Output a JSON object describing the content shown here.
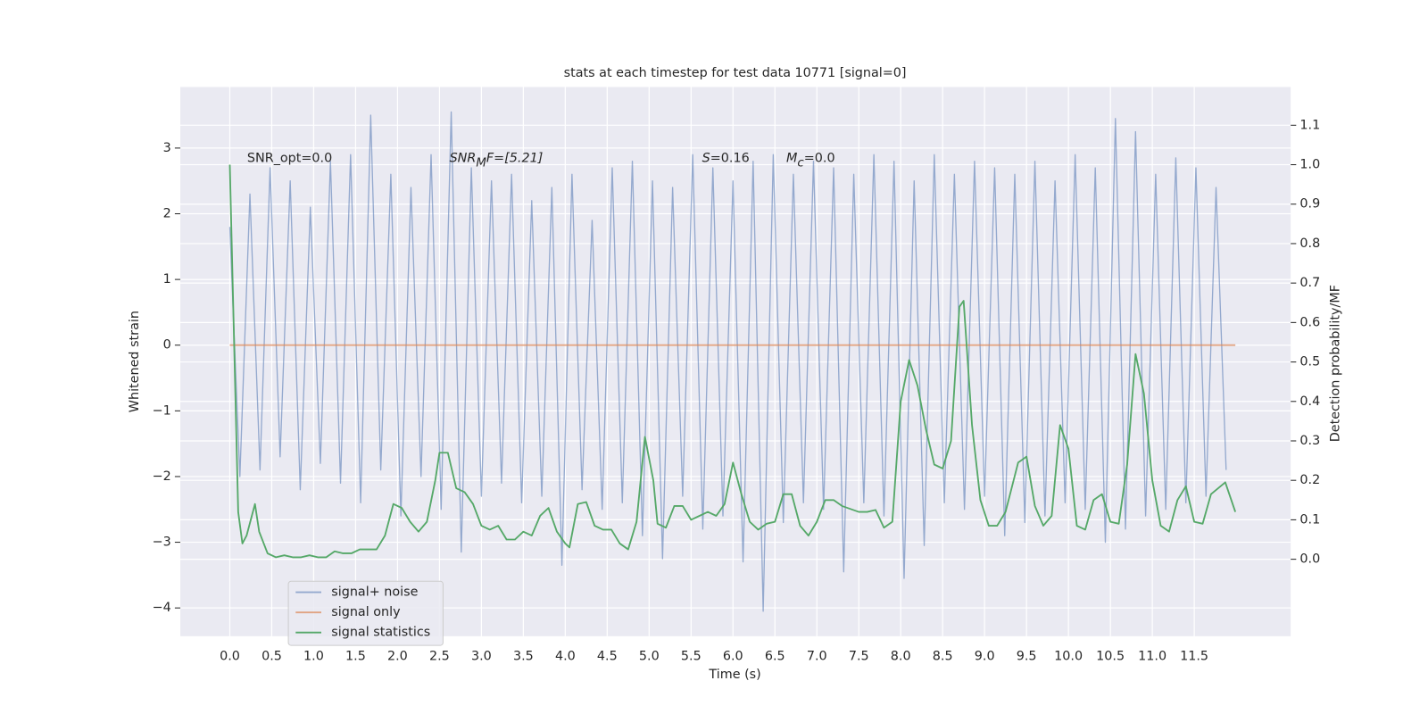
{
  "chart_data": {
    "type": "line",
    "title": "stats at each timestep for test data 10771 [signal=0]",
    "xlabel": "Time (s)",
    "ylabel": "Whitened strain",
    "y2label": "Detection probability/MF",
    "annotations": [
      [
        "SNR_opt=0.0"
      ],
      [
        "SNR",
        "M",
        "F=[5.21]"
      ],
      [
        "S",
        "",
        "=0.16"
      ],
      [
        "M",
        "c",
        "=0.0"
      ]
    ],
    "xlim": [
      -0.59,
      12.65
    ],
    "ylim": [
      -4.43,
      3.93
    ],
    "y2lim": [
      -0.195,
      1.197
    ],
    "xticks": [
      {
        "value": 0,
        "label": "0.0"
      },
      0.5,
      {
        "value": 1,
        "label": "1.0"
      },
      1.5,
      {
        "value": 2,
        "label": "2.0"
      },
      2.5,
      {
        "value": 3,
        "label": "3.0"
      },
      3.5,
      {
        "value": 4,
        "label": "4.0"
      },
      4.5,
      {
        "value": 5,
        "label": "5.0"
      },
      5.5,
      {
        "value": 6,
        "label": "6.0"
      },
      6.5,
      {
        "value": 7,
        "label": "7.0"
      },
      7.5,
      {
        "value": 8,
        "label": "8.0"
      },
      8.5,
      {
        "value": 9,
        "label": "9.0"
      },
      9.5,
      {
        "value": 10,
        "label": "10.0"
      },
      10.5,
      {
        "value": 11,
        "label": "11.0"
      },
      11.5
    ],
    "yticks": [
      {
        "value": -4,
        "label": "−4"
      },
      {
        "value": -3,
        "label": "−3"
      },
      {
        "value": -2,
        "label": "−2"
      },
      {
        "value": -1,
        "label": "−1"
      },
      0,
      1,
      2,
      3
    ],
    "y2ticks": [
      {
        "value": 0,
        "label": "0.0"
      },
      0.1,
      0.2,
      0.3,
      0.4,
      0.5,
      0.6,
      0.7,
      0.8,
      0.9,
      {
        "value": 1,
        "label": "1.0"
      },
      1.1
    ],
    "grid": true,
    "legend": "lower left",
    "series": [
      {
        "name": "signal+ noise",
        "color": "#4c72b0",
        "x": [
          0,
          0.12,
          0.24,
          0.36,
          0.48,
          0.6,
          0.72,
          0.84,
          0.96,
          1.08,
          1.2,
          1.32,
          1.44,
          1.56,
          1.68,
          1.8,
          1.92,
          2.04,
          2.16,
          2.28,
          2.4,
          2.52,
          2.64,
          2.76,
          2.88,
          3.0,
          3.12,
          3.24,
          3.36,
          3.48,
          3.6,
          3.72,
          3.84,
          3.96,
          4.08,
          4.2,
          4.32,
          4.44,
          4.56,
          4.68,
          4.8,
          4.92,
          5.04,
          5.16,
          5.28,
          5.4,
          5.52,
          5.64,
          5.76,
          5.88,
          6.0,
          6.12,
          6.24,
          6.36,
          6.48,
          6.6,
          6.72,
          6.84,
          6.96,
          7.08,
          7.2,
          7.32,
          7.44,
          7.56,
          7.68,
          7.8,
          7.92,
          8.04,
          8.16,
          8.28,
          8.4,
          8.52,
          8.64,
          8.76,
          8.88,
          9.0,
          9.12,
          9.24,
          9.36,
          9.48,
          9.6,
          9.72,
          9.84,
          9.96,
          10.08,
          10.2,
          10.32,
          10.44,
          10.56,
          10.68,
          10.8,
          10.92,
          11.04,
          11.16,
          11.28,
          11.4,
          11.52,
          11.64,
          11.76,
          11.88
        ],
        "values": [
          1.8,
          -2.0,
          2.3,
          -1.9,
          2.7,
          -1.7,
          2.5,
          -2.2,
          2.1,
          -1.8,
          2.8,
          -2.1,
          2.9,
          -2.4,
          3.5,
          -1.9,
          2.6,
          -2.6,
          2.4,
          -2.0,
          2.9,
          -2.5,
          3.55,
          -3.15,
          2.7,
          -2.3,
          2.5,
          -2.1,
          2.6,
          -2.4,
          2.2,
          -2.3,
          2.4,
          -3.35,
          2.6,
          -2.2,
          1.9,
          -2.5,
          2.7,
          -2.4,
          2.8,
          -2.9,
          2.5,
          -3.25,
          2.4,
          -2.3,
          2.9,
          -2.8,
          2.7,
          -2.6,
          2.5,
          -3.3,
          2.8,
          -4.05,
          2.9,
          -2.7,
          2.6,
          -2.4,
          2.8,
          -2.5,
          2.7,
          -3.45,
          2.6,
          -2.4,
          2.9,
          -2.6,
          2.8,
          -3.55,
          2.5,
          -3.05,
          2.9,
          -2.4,
          2.6,
          -2.5,
          2.8,
          -2.3,
          2.7,
          -2.9,
          2.6,
          -2.7,
          2.8,
          -2.6,
          2.5,
          -2.4,
          2.9,
          -2.5,
          2.7,
          -3.0,
          3.45,
          -2.8,
          3.25,
          -2.6,
          2.6,
          -2.5,
          2.85,
          -2.4,
          2.7,
          -2.3,
          2.4,
          -1.9
        ]
      },
      {
        "name": "signal only",
        "color": "#dd8452",
        "x": [
          0,
          11.99
        ],
        "values": [
          0,
          0
        ]
      },
      {
        "name": "signal statistics",
        "color": "#55a868",
        "axis": "y2",
        "x": [
          0,
          0.1,
          0.15,
          0.2,
          0.3,
          0.35,
          0.45,
          0.55,
          0.65,
          0.75,
          0.85,
          0.95,
          1.05,
          1.15,
          1.25,
          1.35,
          1.45,
          1.55,
          1.65,
          1.75,
          1.85,
          1.95,
          2.05,
          2.15,
          2.25,
          2.35,
          2.45,
          2.5,
          2.6,
          2.7,
          2.8,
          2.9,
          3.0,
          3.1,
          3.2,
          3.3,
          3.4,
          3.5,
          3.6,
          3.7,
          3.8,
          3.9,
          4.0,
          4.05,
          4.15,
          4.25,
          4.35,
          4.45,
          4.55,
          4.65,
          4.75,
          4.85,
          4.95,
          5.05,
          5.1,
          5.2,
          5.3,
          5.4,
          5.5,
          5.6,
          5.7,
          5.8,
          5.9,
          6.0,
          6.1,
          6.2,
          6.3,
          6.4,
          6.5,
          6.6,
          6.7,
          6.8,
          6.9,
          7.0,
          7.1,
          7.2,
          7.3,
          7.5,
          7.6,
          7.7,
          7.8,
          7.9,
          8.0,
          8.1,
          8.2,
          8.3,
          8.4,
          8.5,
          8.6,
          8.7,
          8.75,
          8.85,
          8.95,
          9.05,
          9.15,
          9.25,
          9.4,
          9.5,
          9.6,
          9.7,
          9.8,
          9.9,
          10.0,
          10.1,
          10.2,
          10.3,
          10.4,
          10.5,
          10.6,
          10.7,
          10.8,
          10.9,
          11.0,
          11.1,
          11.2,
          11.3,
          11.4,
          11.5,
          11.6,
          11.7,
          11.87,
          11.99
        ],
        "values": [
          1.0,
          0.12,
          0.04,
          0.06,
          0.14,
          0.07,
          0.015,
          0.005,
          0.01,
          0.005,
          0.005,
          0.01,
          0.005,
          0.005,
          0.02,
          0.015,
          0.015,
          0.025,
          0.025,
          0.025,
          0.06,
          0.14,
          0.13,
          0.095,
          0.07,
          0.095,
          0.2,
          0.27,
          0.27,
          0.18,
          0.17,
          0.14,
          0.085,
          0.075,
          0.085,
          0.05,
          0.05,
          0.07,
          0.06,
          0.11,
          0.13,
          0.07,
          0.04,
          0.03,
          0.14,
          0.145,
          0.085,
          0.075,
          0.075,
          0.04,
          0.025,
          0.095,
          0.31,
          0.2,
          0.09,
          0.08,
          0.135,
          0.135,
          0.1,
          0.11,
          0.12,
          0.11,
          0.14,
          0.245,
          0.165,
          0.095,
          0.075,
          0.09,
          0.095,
          0.165,
          0.165,
          0.085,
          0.06,
          0.095,
          0.15,
          0.15,
          0.135,
          0.12,
          0.12,
          0.125,
          0.08,
          0.095,
          0.4,
          0.505,
          0.44,
          0.33,
          0.24,
          0.23,
          0.3,
          0.64,
          0.655,
          0.34,
          0.15,
          0.085,
          0.085,
          0.12,
          0.245,
          0.26,
          0.135,
          0.085,
          0.11,
          0.34,
          0.28,
          0.085,
          0.075,
          0.15,
          0.165,
          0.095,
          0.09,
          0.24,
          0.52,
          0.42,
          0.2,
          0.085,
          0.07,
          0.15,
          0.185,
          0.095,
          0.09,
          0.165,
          0.195,
          0.12
        ]
      }
    ]
  }
}
